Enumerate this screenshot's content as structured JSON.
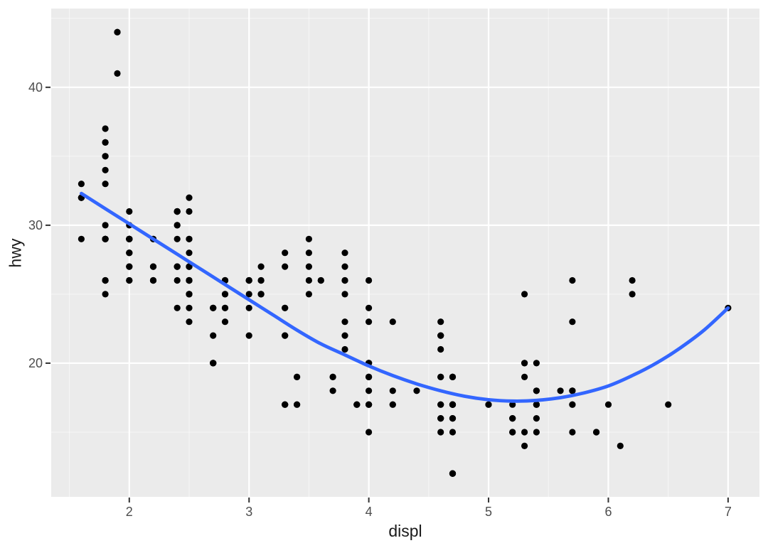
{
  "figure": {
    "x_axis_title": "displ",
    "y_axis_title": "hwy"
  },
  "chart_data": {
    "type": "scatter",
    "title": "",
    "xlabel": "displ",
    "ylabel": "hwy",
    "legend": "none",
    "grid": "major+minor",
    "x_domain": [
      1.348,
      7.262
    ],
    "y_domain": [
      10.31,
      45.71
    ],
    "x_ticks": [
      2,
      3,
      4,
      5,
      6,
      7
    ],
    "x_minor_ticks": [
      1.5,
      2.5,
      3.5,
      4.5,
      5.5,
      6.5
    ],
    "y_ticks": [
      20,
      30,
      40
    ],
    "y_minor_ticks": [
      15,
      25,
      35,
      45
    ],
    "colors": {
      "panel_bg": "#EBEBEB",
      "grid_major": "#FFFFFF",
      "grid_minor": "#FFFFFF",
      "point": "#000000",
      "smooth": "#3366FF",
      "tick_label": "#4D4D4D",
      "tick_mark": "#333333",
      "axis_title": "#1A1A1A"
    },
    "points": [
      [
        1.8,
        29
      ],
      [
        1.8,
        29
      ],
      [
        2,
        31
      ],
      [
        2,
        30
      ],
      [
        2.8,
        26
      ],
      [
        2.8,
        26
      ],
      [
        3.1,
        27
      ],
      [
        1.8,
        26
      ],
      [
        1.8,
        25
      ],
      [
        2,
        28
      ],
      [
        2,
        27
      ],
      [
        2.8,
        25
      ],
      [
        2.8,
        25
      ],
      [
        3.1,
        25
      ],
      [
        3.1,
        25
      ],
      [
        2.8,
        24
      ],
      [
        3.1,
        25
      ],
      [
        4.2,
        23
      ],
      [
        5.3,
        20
      ],
      [
        5.3,
        15
      ],
      [
        5.3,
        20
      ],
      [
        5.7,
        17
      ],
      [
        6,
        17
      ],
      [
        5.7,
        26
      ],
      [
        5.7,
        23
      ],
      [
        6.2,
        26
      ],
      [
        6.2,
        25
      ],
      [
        7,
        24
      ],
      [
        5.3,
        19
      ],
      [
        5.3,
        14
      ],
      [
        5.7,
        15
      ],
      [
        6.5,
        17
      ],
      [
        2.4,
        27
      ],
      [
        2.4,
        30
      ],
      [
        3.1,
        26
      ],
      [
        3.5,
        29
      ],
      [
        3.6,
        26
      ],
      [
        2.4,
        24
      ],
      [
        3,
        24
      ],
      [
        3.3,
        22
      ],
      [
        3.3,
        22
      ],
      [
        3.3,
        24
      ],
      [
        3.3,
        24
      ],
      [
        3.3,
        17
      ],
      [
        3.8,
        22
      ],
      [
        3.8,
        21
      ],
      [
        3.8,
        23
      ],
      [
        4,
        23
      ],
      [
        3.7,
        19
      ],
      [
        3.7,
        18
      ],
      [
        3.9,
        17
      ],
      [
        3.9,
        17
      ],
      [
        4.7,
        19
      ],
      [
        4.7,
        19
      ],
      [
        4.7,
        12
      ],
      [
        5.2,
        17
      ],
      [
        5.2,
        15
      ],
      [
        3.9,
        17
      ],
      [
        4.7,
        17
      ],
      [
        4.7,
        12
      ],
      [
        4.7,
        17
      ],
      [
        5.2,
        16
      ],
      [
        5.7,
        18
      ],
      [
        5.9,
        15
      ],
      [
        4.7,
        16
      ],
      [
        4.7,
        12
      ],
      [
        4.7,
        17
      ],
      [
        4.7,
        17
      ],
      [
        4.7,
        16
      ],
      [
        4.7,
        12
      ],
      [
        5.2,
        15
      ],
      [
        5.2,
        16
      ],
      [
        5.7,
        17
      ],
      [
        5.9,
        15
      ],
      [
        4.6,
        17
      ],
      [
        5.4,
        17
      ],
      [
        5.4,
        18
      ],
      [
        4,
        17
      ],
      [
        4,
        19
      ],
      [
        4,
        17
      ],
      [
        4,
        19
      ],
      [
        4.6,
        19
      ],
      [
        5,
        17
      ],
      [
        4.2,
        17
      ],
      [
        4.2,
        17
      ],
      [
        4.6,
        16
      ],
      [
        4.6,
        16
      ],
      [
        4.6,
        17
      ],
      [
        5.4,
        15
      ],
      [
        5.4,
        17
      ],
      [
        3.8,
        26
      ],
      [
        3.8,
        25
      ],
      [
        4,
        26
      ],
      [
        4,
        24
      ],
      [
        4.6,
        21
      ],
      [
        4.6,
        22
      ],
      [
        4.6,
        23
      ],
      [
        4.6,
        22
      ],
      [
        5.4,
        20
      ],
      [
        1.6,
        33
      ],
      [
        1.6,
        32
      ],
      [
        1.6,
        32
      ],
      [
        1.6,
        29
      ],
      [
        1.6,
        32
      ],
      [
        1.8,
        34
      ],
      [
        1.8,
        36
      ],
      [
        1.8,
        36
      ],
      [
        2,
        29
      ],
      [
        2.4,
        26
      ],
      [
        2.4,
        27
      ],
      [
        2.4,
        30
      ],
      [
        2.4,
        31
      ],
      [
        2.5,
        26
      ],
      [
        2.5,
        26
      ],
      [
        3.3,
        28
      ],
      [
        2,
        26
      ],
      [
        2,
        29
      ],
      [
        2,
        28
      ],
      [
        2,
        27
      ],
      [
        2.7,
        24
      ],
      [
        2.7,
        24
      ],
      [
        2.7,
        24
      ],
      [
        3,
        22
      ],
      [
        3.7,
        19
      ],
      [
        4,
        20
      ],
      [
        4.7,
        17
      ],
      [
        4.7,
        12
      ],
      [
        4.7,
        19
      ],
      [
        5.7,
        18
      ],
      [
        6.1,
        14
      ],
      [
        4,
        15
      ],
      [
        4.2,
        18
      ],
      [
        4.4,
        18
      ],
      [
        4.6,
        15
      ],
      [
        5.4,
        17
      ],
      [
        5.4,
        16
      ],
      [
        5.4,
        18
      ],
      [
        4,
        17
      ],
      [
        4,
        19
      ],
      [
        4.6,
        19
      ],
      [
        5,
        17
      ],
      [
        2.4,
        29
      ],
      [
        2.4,
        27
      ],
      [
        2.5,
        31
      ],
      [
        2.5,
        32
      ],
      [
        3.5,
        27
      ],
      [
        3.5,
        26
      ],
      [
        3,
        26
      ],
      [
        3,
        25
      ],
      [
        3.5,
        25
      ],
      [
        3.3,
        17
      ],
      [
        3.3,
        17
      ],
      [
        4,
        20
      ],
      [
        5.6,
        18
      ],
      [
        3.1,
        26
      ],
      [
        3.8,
        26
      ],
      [
        3.8,
        27
      ],
      [
        3.8,
        28
      ],
      [
        5.3,
        25
      ],
      [
        2.5,
        25
      ],
      [
        2.5,
        24
      ],
      [
        2.5,
        27
      ],
      [
        2.5,
        25
      ],
      [
        2.5,
        26
      ],
      [
        2.5,
        23
      ],
      [
        2.2,
        26
      ],
      [
        2.2,
        26
      ],
      [
        2.5,
        26
      ],
      [
        2.5,
        26
      ],
      [
        2.5,
        25
      ],
      [
        2.5,
        27
      ],
      [
        2.5,
        25
      ],
      [
        2.5,
        27
      ],
      [
        2.7,
        20
      ],
      [
        2.7,
        20
      ],
      [
        3.4,
        19
      ],
      [
        3.4,
        17
      ],
      [
        4,
        20
      ],
      [
        4.7,
        17
      ],
      [
        2.2,
        29
      ],
      [
        2.2,
        27
      ],
      [
        2.4,
        31
      ],
      [
        2.4,
        31
      ],
      [
        3,
        26
      ],
      [
        3,
        26
      ],
      [
        3.5,
        28
      ],
      [
        2.2,
        26
      ],
      [
        2.2,
        27
      ],
      [
        2.2,
        29
      ],
      [
        2.4,
        31
      ],
      [
        2.4,
        31
      ],
      [
        3,
        26
      ],
      [
        3.3,
        27
      ],
      [
        1.8,
        30
      ],
      [
        1.8,
        33
      ],
      [
        1.8,
        35
      ],
      [
        1.8,
        37
      ],
      [
        1.8,
        35
      ],
      [
        4.7,
        15
      ],
      [
        5.7,
        18
      ],
      [
        2.7,
        20
      ],
      [
        2.7,
        20
      ],
      [
        2.7,
        22
      ],
      [
        3.4,
        17
      ],
      [
        3.4,
        19
      ],
      [
        4,
        18
      ],
      [
        4,
        20
      ],
      [
        1.8,
        29
      ],
      [
        1.8,
        26
      ],
      [
        2,
        29
      ],
      [
        2,
        29
      ],
      [
        2.8,
        24
      ],
      [
        1.8,
        29
      ],
      [
        1.8,
        26
      ],
      [
        1.9,
        44
      ],
      [
        2,
        29
      ],
      [
        2,
        26
      ],
      [
        2,
        29
      ],
      [
        2,
        29
      ],
      [
        2.5,
        29
      ],
      [
        2.8,
        23
      ],
      [
        1.9,
        44
      ],
      [
        1.9,
        41
      ],
      [
        2,
        29
      ],
      [
        2,
        29
      ],
      [
        2.5,
        28
      ],
      [
        2.5,
        29
      ],
      [
        1.8,
        29
      ],
      [
        1.8,
        29
      ],
      [
        2,
        28
      ],
      [
        2,
        29
      ],
      [
        2.8,
        26
      ],
      [
        2.8,
        26
      ],
      [
        3.6,
        26
      ]
    ],
    "smooth_line": {
      "method": "loess",
      "points": [
        [
          1.6,
          32.3
        ],
        [
          1.8,
          31.2
        ],
        [
          2.0,
          30.1
        ],
        [
          2.2,
          29.0
        ],
        [
          2.4,
          27.9
        ],
        [
          2.6,
          26.8
        ],
        [
          2.8,
          25.7
        ],
        [
          3.0,
          24.6
        ],
        [
          3.2,
          23.5
        ],
        [
          3.4,
          22.4
        ],
        [
          3.6,
          21.4
        ],
        [
          3.8,
          20.6
        ],
        [
          4.0,
          19.8
        ],
        [
          4.2,
          19.1
        ],
        [
          4.4,
          18.5
        ],
        [
          4.6,
          18.0
        ],
        [
          4.8,
          17.6
        ],
        [
          5.0,
          17.35
        ],
        [
          5.2,
          17.25
        ],
        [
          5.4,
          17.3
        ],
        [
          5.6,
          17.5
        ],
        [
          5.8,
          17.85
        ],
        [
          6.0,
          18.35
        ],
        [
          6.2,
          19.1
        ],
        [
          6.4,
          20.0
        ],
        [
          6.6,
          21.1
        ],
        [
          6.8,
          22.4
        ],
        [
          7.0,
          24.0
        ]
      ]
    }
  }
}
